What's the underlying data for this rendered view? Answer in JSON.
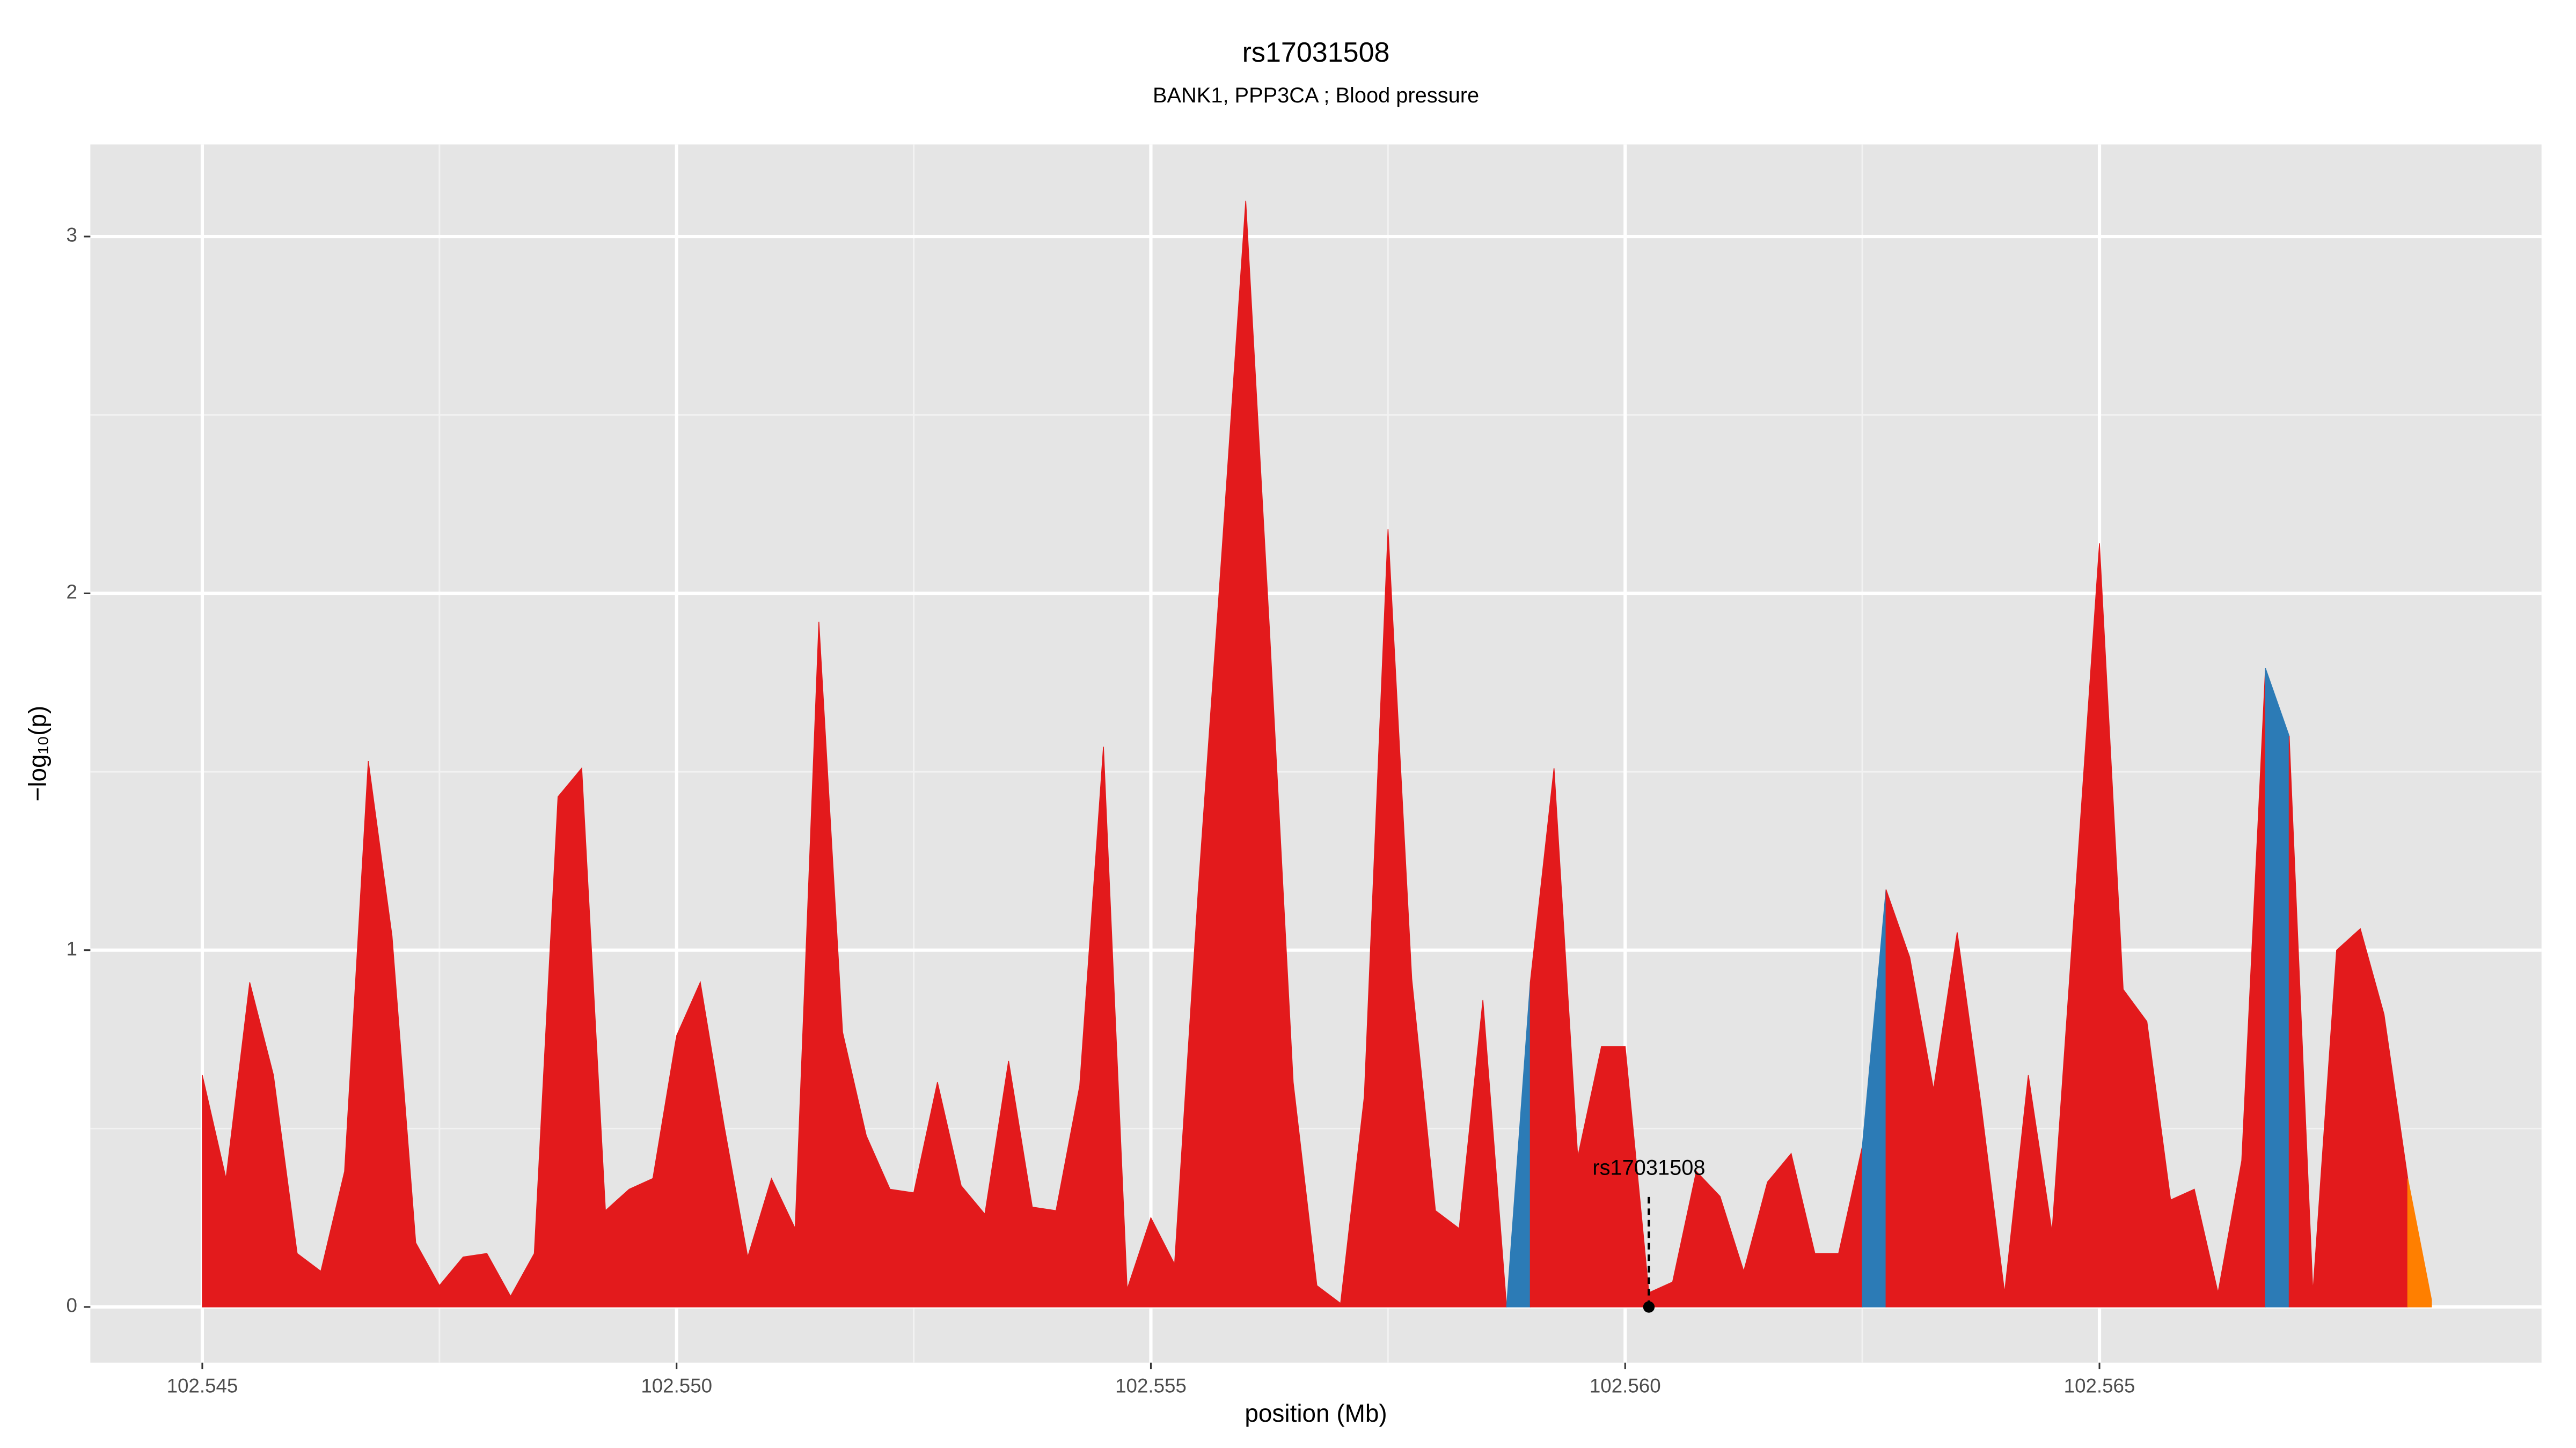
{
  "chart_data": {
    "type": "area",
    "title": "rs17031508",
    "subtitle": "BANK1, PPP3CA ; Blood pressure",
    "x_label": "position (Mb)",
    "y_label": "−log₁₀(p)",
    "xlim": [
      102.54382,
      102.56966
    ],
    "ylim": [
      -0.156,
      3.258
    ],
    "xticks": [
      102.545,
      {
        "value": 102.55,
        "label": "102.550"
      },
      102.555,
      {
        "value": 102.56,
        "label": "102.560"
      },
      102.565
    ],
    "yticks": [
      0,
      1,
      2,
      3
    ],
    "grid": true,
    "series": [
      {
        "color": "#e31a1c",
        "x": [
          102.545,
          102.54525,
          102.5455,
          102.54575,
          102.546,
          102.54625,
          102.5465,
          102.54675,
          102.547,
          102.54725,
          102.5475,
          102.54775,
          102.548,
          102.54825,
          102.5485,
          102.54875,
          102.549,
          102.54925,
          102.5495,
          102.54975,
          102.55,
          102.55025,
          102.5505,
          102.55075,
          102.551,
          102.55125,
          102.5515,
          102.55175,
          102.552,
          102.55225,
          102.5525,
          102.55275,
          102.553,
          102.55325,
          102.5535,
          102.55375,
          102.554,
          102.55425,
          102.5545,
          102.55475,
          102.555,
          102.55525,
          102.5555,
          102.55575,
          102.556,
          102.55625,
          102.5565,
          102.55675,
          102.557,
          102.55725,
          102.5575,
          102.55775,
          102.558,
          102.55825,
          102.5585,
          102.55875
        ],
        "values": [
          0.65,
          0.36,
          0.91,
          0.65,
          0.15,
          0.1,
          0.38,
          1.53,
          1.04,
          0.18,
          0.06,
          0.14,
          0.15,
          0.03,
          0.15,
          1.43,
          1.51,
          0.27,
          0.33,
          0.36,
          0.76,
          0.91,
          0.51,
          0.14,
          0.36,
          0.22,
          1.92,
          0.77,
          0.48,
          0.33,
          0.32,
          0.63,
          0.34,
          0.26,
          0.69,
          0.28,
          0.27,
          0.62,
          1.57,
          0.05,
          0.25,
          0.12,
          1.17,
          2.12,
          3.1,
          1.9,
          0.63,
          0.06,
          0.01,
          0.59,
          2.18,
          0.92,
          0.27,
          0.22,
          0.86,
          0.0
        ]
      },
      {
        "color": "#2c7bb6",
        "x": [
          102.55875,
          102.559
        ],
        "values": [
          0.0,
          0.91
        ]
      },
      {
        "color": "#e31a1c",
        "x": [
          102.559,
          102.55925,
          102.5595,
          102.55975,
          102.56,
          102.56025,
          102.5605,
          102.56075,
          102.561,
          102.56125,
          102.5615,
          102.56175,
          102.562,
          102.56225,
          102.5625
        ],
        "values": [
          0.91,
          1.51,
          0.42,
          0.73,
          0.73,
          0.04,
          0.07,
          0.38,
          0.31,
          0.1,
          0.35,
          0.43,
          0.15,
          0.15,
          0.45
        ]
      },
      {
        "color": "#2c7bb6",
        "x": [
          102.5625,
          102.56275
        ],
        "values": [
          0.45,
          1.17
        ]
      },
      {
        "color": "#e31a1c",
        "x": [
          102.56275,
          102.563,
          102.56325,
          102.5635,
          102.56375,
          102.564,
          102.56425,
          102.5645,
          102.56475,
          102.565,
          102.56525,
          102.5655,
          102.56575,
          102.566,
          102.56625,
          102.5665,
          102.56675
        ],
        "values": [
          1.17,
          0.98,
          0.61,
          1.05,
          0.57,
          0.04,
          0.65,
          0.21,
          1.17,
          2.14,
          0.89,
          0.8,
          0.3,
          0.33,
          0.04,
          0.41,
          1.79
        ]
      },
      {
        "color": "#2c7bb6",
        "x": [
          102.56675,
          102.567
        ],
        "values": [
          1.79,
          1.6
        ]
      },
      {
        "color": "#e31a1c",
        "x": [
          102.567,
          102.56725,
          102.5675,
          102.56775,
          102.568,
          102.56825
        ],
        "values": [
          1.6,
          0.04,
          1.0,
          1.06,
          0.82,
          0.36
        ]
      },
      {
        "color": "#ff7f00",
        "x": [
          102.56825,
          102.5685
        ],
        "values": [
          0.36,
          0.02
        ]
      }
    ],
    "annotation": {
      "text": "rs17031508",
      "x": 102.56025,
      "y": 0
    }
  }
}
